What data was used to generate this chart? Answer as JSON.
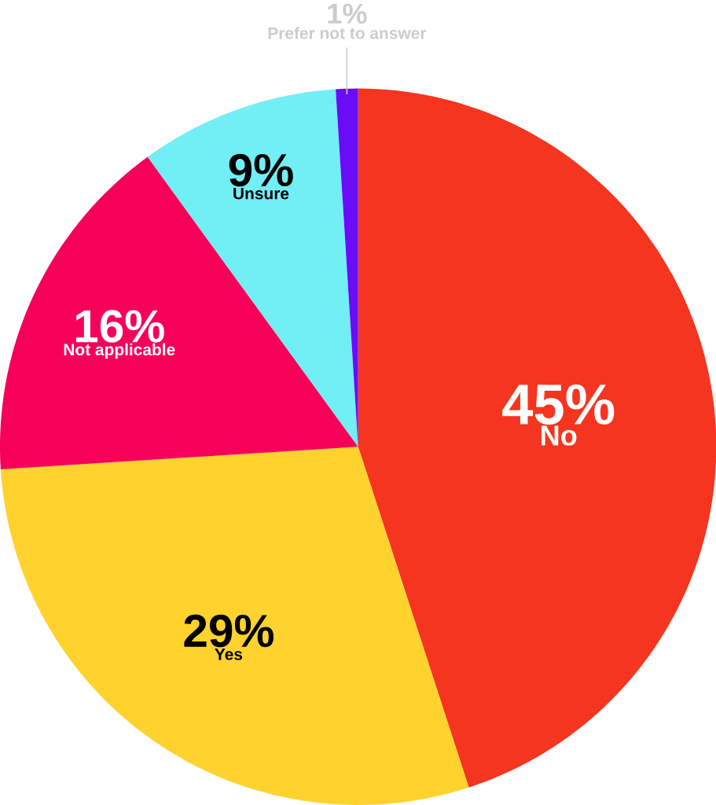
{
  "chart_data": {
    "type": "pie",
    "categories": [
      "No",
      "Yes",
      "Not applicable",
      "Unsure",
      "Prefer not to answer"
    ],
    "values": [
      45,
      29,
      16,
      9,
      1
    ],
    "colors": [
      "#f5351f",
      "#ffd22e",
      "#f7005a",
      "#72eef5",
      "#6a0cf7"
    ],
    "value_labels": [
      "45%",
      "29%",
      "16%",
      "9%",
      "1%"
    ]
  }
}
